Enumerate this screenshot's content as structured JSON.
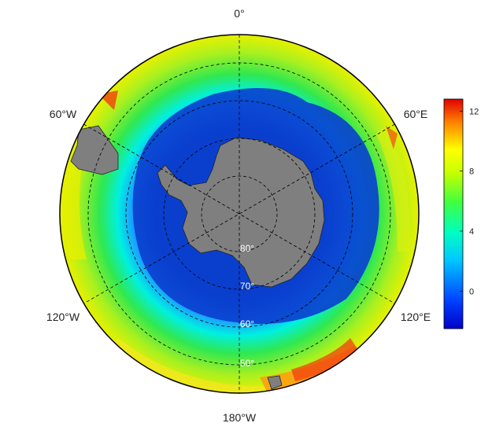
{
  "map": {
    "projection": "south-polar-stereographic",
    "longitude_labels": {
      "top": "0°",
      "upper_left": "60°W",
      "upper_right": "60°E",
      "lower_left": "120°W",
      "lower_right": "120°E",
      "bottom": "180°W"
    },
    "latitude_labels": {
      "lat80": "80°",
      "lat70": "70°",
      "lat60": "60°",
      "lat50": "50°"
    }
  },
  "colorbar": {
    "min": -2.5,
    "max": 12.8,
    "ticks": [
      "12",
      "8",
      "4",
      "0"
    ],
    "colormap": "jet"
  },
  "colors": {
    "land": "#7f7f7f",
    "ice_shelf_blue": "#0a3fce",
    "frame": "#000000",
    "gridline": "#000000"
  }
}
